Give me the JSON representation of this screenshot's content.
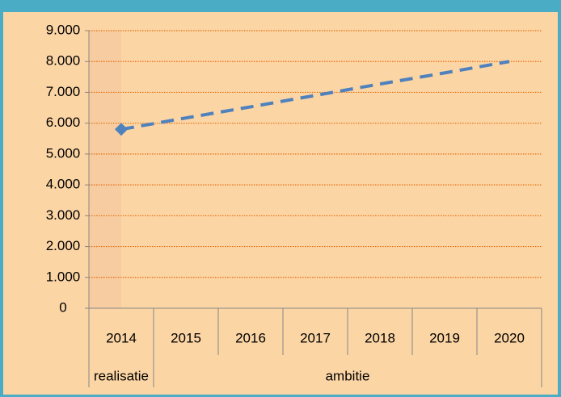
{
  "chart_data": {
    "type": "line",
    "categories": [
      "2014",
      "2015",
      "2016",
      "2017",
      "2018",
      "2019",
      "2020"
    ],
    "category_groups": [
      {
        "label": "realisatie",
        "span": 1
      },
      {
        "label": "ambitie",
        "span": 6
      }
    ],
    "series": [
      {
        "color": "#4f81bd",
        "values": [
          5800,
          6170,
          6530,
          6900,
          7270,
          7630,
          8000
        ],
        "marker": "diamond"
      }
    ],
    "ylim": [
      0,
      9000
    ],
    "yticks": [
      0,
      {
        "value": 1000,
        "label": "1.000"
      },
      {
        "value": 2000,
        "label": "2.000"
      },
      {
        "value": 3000,
        "label": "3.000"
      },
      {
        "value": 4000,
        "label": "4.000"
      },
      {
        "value": 5000,
        "label": "5.000"
      },
      {
        "value": 6000,
        "label": "6.000"
      },
      {
        "value": 7000,
        "label": "7.000"
      },
      {
        "value": 8000,
        "label": "8.000"
      },
      {
        "value": 9000,
        "label": "9.000"
      }
    ],
    "grid": true,
    "grid_color": "#e46c0a"
  }
}
